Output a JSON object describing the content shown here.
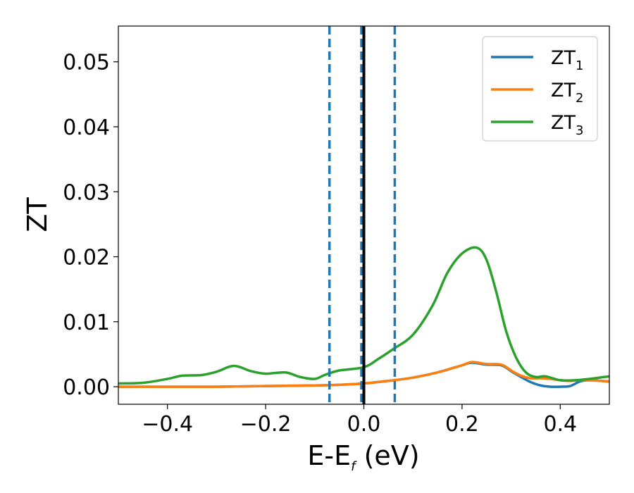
{
  "chart_data": {
    "type": "line",
    "title": "",
    "xlabel_main": "E-E",
    "xlabel_sub": "f",
    "xlabel_unit": " (eV)",
    "ylabel": "ZT",
    "xlim": [
      -0.5,
      0.5
    ],
    "ylim": [
      -0.0027,
      0.0555
    ],
    "x_ticks": [
      -0.4,
      -0.2,
      0.0,
      0.2,
      0.4
    ],
    "x_tick_labels": [
      "−0.4",
      "−0.2",
      "0.0",
      "0.2",
      "0.4"
    ],
    "y_ticks": [
      0.0,
      0.01,
      0.02,
      0.03,
      0.04,
      0.05
    ],
    "y_tick_labels": [
      "0.00",
      "0.01",
      "0.02",
      "0.03",
      "0.04",
      "0.05"
    ],
    "grid": false,
    "legend_position": "top-right",
    "vertical_lines": [
      {
        "x": -0.07,
        "style": "dashed",
        "color": "#1f77b4"
      },
      {
        "x": -0.005,
        "style": "dashed",
        "color": "#1f77b4"
      },
      {
        "x": 0.063,
        "style": "dashed",
        "color": "#1f77b4"
      },
      {
        "x": 0.0,
        "style": "solid",
        "color": "#000000"
      }
    ],
    "series": [
      {
        "name": "ZT",
        "name_sub": "1",
        "color": "#1f77b4",
        "x": [
          -0.5,
          -0.4,
          -0.3,
          -0.2,
          -0.1,
          -0.05,
          0.0,
          0.05,
          0.1,
          0.15,
          0.2,
          0.22,
          0.25,
          0.28,
          0.3,
          0.32,
          0.34,
          0.36,
          0.38,
          0.4,
          0.42,
          0.44,
          0.46,
          0.5
        ],
        "y": [
          0.0,
          0.0,
          0.0,
          0.0001,
          0.0002,
          0.0003,
          0.0005,
          0.0009,
          0.0014,
          0.0022,
          0.0033,
          0.0037,
          0.0034,
          0.0033,
          0.0024,
          0.0015,
          0.0007,
          0.0002,
          0.0,
          0.0,
          0.0001,
          0.0008,
          0.001,
          0.0008
        ]
      },
      {
        "name": "ZT",
        "name_sub": "2",
        "color": "#ff7f0e",
        "x": [
          -0.5,
          -0.4,
          -0.3,
          -0.2,
          -0.1,
          -0.05,
          0.0,
          0.05,
          0.1,
          0.15,
          0.2,
          0.22,
          0.25,
          0.28,
          0.3,
          0.32,
          0.34,
          0.36,
          0.38,
          0.4,
          0.42,
          0.44,
          0.46,
          0.5
        ],
        "y": [
          0.0,
          0.0,
          0.0,
          0.0001,
          0.0002,
          0.0003,
          0.0005,
          0.0009,
          0.0014,
          0.0022,
          0.0033,
          0.0038,
          0.0035,
          0.0034,
          0.0025,
          0.0017,
          0.0013,
          0.0013,
          0.0012,
          0.001,
          0.0009,
          0.001,
          0.001,
          0.0008
        ]
      },
      {
        "name": "ZT",
        "name_sub": "3",
        "color": "#2ca02c",
        "x": [
          -0.5,
          -0.45,
          -0.4,
          -0.37,
          -0.33,
          -0.3,
          -0.265,
          -0.23,
          -0.2,
          -0.16,
          -0.13,
          -0.1,
          -0.08,
          -0.05,
          0.0,
          0.03,
          0.06,
          0.1,
          0.14,
          0.17,
          0.2,
          0.23,
          0.25,
          0.27,
          0.29,
          0.31,
          0.33,
          0.35,
          0.37,
          0.4,
          0.43,
          0.46,
          0.5
        ],
        "y": [
          0.0005,
          0.0006,
          0.0012,
          0.0017,
          0.0018,
          0.0023,
          0.0032,
          0.0024,
          0.002,
          0.0022,
          0.0015,
          0.0012,
          0.0018,
          0.0025,
          0.003,
          0.0043,
          0.0058,
          0.008,
          0.0125,
          0.0175,
          0.0205,
          0.0214,
          0.0195,
          0.0145,
          0.0085,
          0.0045,
          0.0022,
          0.0015,
          0.0016,
          0.001,
          0.001,
          0.0012,
          0.0016
        ]
      }
    ]
  }
}
